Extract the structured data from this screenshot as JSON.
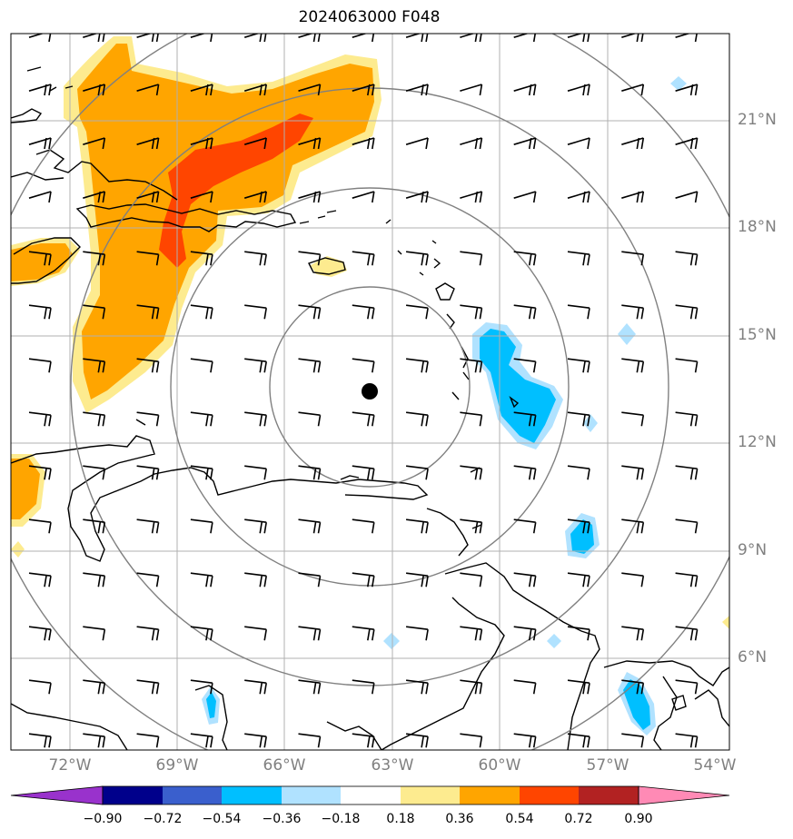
{
  "title": "2024063000 F048",
  "map": {
    "region": "Eastern Caribbean",
    "lon_range": [
      -73,
      -54
    ],
    "lat_range": [
      3.8,
      22.5
    ],
    "lat_labels": [
      "21°N",
      "18°N",
      "15°N",
      "12°N",
      "9°N",
      "6°N"
    ],
    "lon_labels": [
      "72°W",
      "69°W",
      "66°W",
      "63°W",
      "60°W",
      "57°W",
      "54°W"
    ],
    "storm_center_icon": "storm-center-dot-icon",
    "range_rings": 4,
    "wind_barbs_icon": "wind-barb-icon"
  },
  "colorbar": {
    "ticks": [
      "−0.90",
      "−0.72",
      "−0.54",
      "−0.36",
      "−0.18",
      "0.18",
      "0.36",
      "0.54",
      "0.72",
      "0.90"
    ],
    "colors": [
      "#9932cc",
      "#00008b",
      "#3a5fcd",
      "#00bfff",
      "#b0e2ff",
      "#ffffff",
      "#fdeb8f",
      "#ffa500",
      "#ff4500",
      "#b22222",
      "#ff8ab5"
    ]
  }
}
